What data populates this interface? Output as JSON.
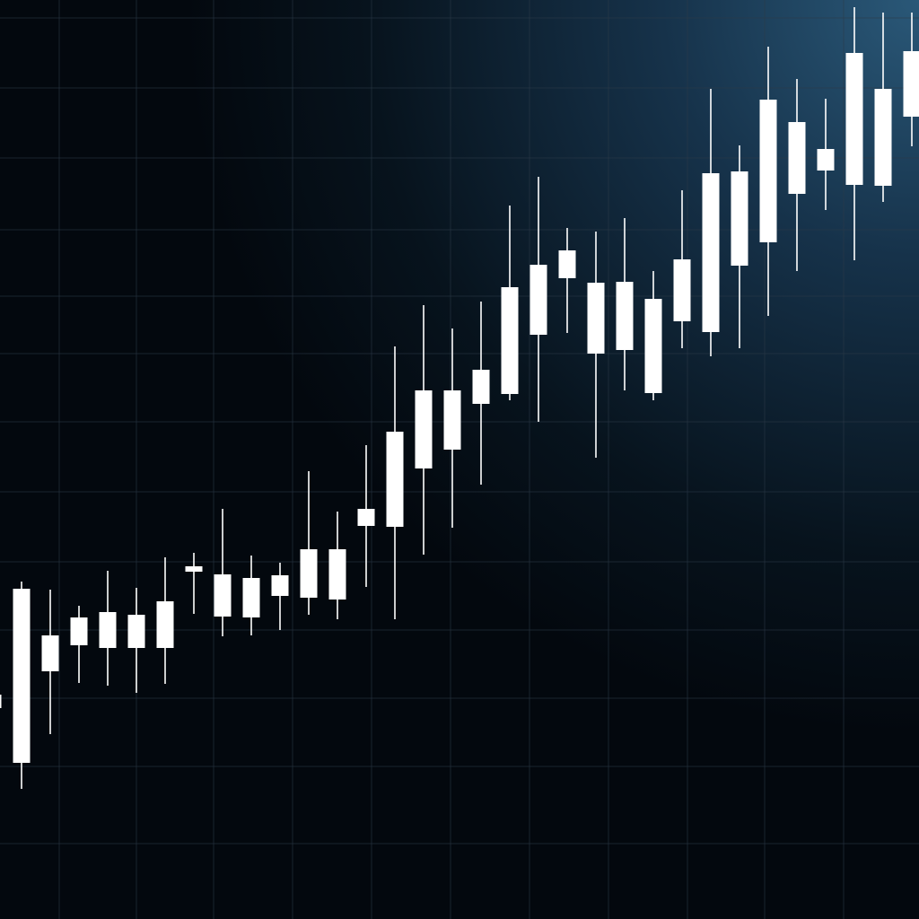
{
  "chart_data": {
    "type": "candlestick",
    "title": "",
    "xlabel": "",
    "ylabel": "",
    "grid": true,
    "legend": "none",
    "ylim": [
      0,
      1024
    ],
    "colors": {
      "background_dark": "#03080e",
      "background_glow": "#2a5878",
      "grid": "#2c3a48",
      "candle": "#ffffff"
    },
    "candles": [
      {
        "open": 235,
        "close": 250,
        "high": 260,
        "low": 226
      },
      {
        "open": 174,
        "close": 368,
        "high": 376,
        "low": 145
      },
      {
        "open": 276,
        "close": 316,
        "high": 367,
        "low": 206
      },
      {
        "open": 305,
        "close": 336,
        "high": 349,
        "low": 263
      },
      {
        "open": 302,
        "close": 342,
        "high": 388,
        "low": 260
      },
      {
        "open": 302,
        "close": 339,
        "high": 369,
        "low": 252
      },
      {
        "open": 302,
        "close": 354,
        "high": 403,
        "low": 262
      },
      {
        "open": 387,
        "close": 393,
        "high": 408,
        "low": 340
      },
      {
        "open": 337,
        "close": 384,
        "high": 457,
        "low": 315
      },
      {
        "open": 336,
        "close": 380,
        "high": 405,
        "low": 316
      },
      {
        "open": 360,
        "close": 383,
        "high": 397,
        "low": 322
      },
      {
        "open": 358,
        "close": 412,
        "high": 499,
        "low": 339
      },
      {
        "open": 356,
        "close": 412,
        "high": 454,
        "low": 334
      },
      {
        "open": 438,
        "close": 457,
        "high": 528,
        "low": 370
      },
      {
        "open": 437,
        "close": 543,
        "high": 638,
        "low": 334
      },
      {
        "open": 502,
        "close": 589,
        "high": 684,
        "low": 406
      },
      {
        "open": 523,
        "close": 589,
        "high": 658,
        "low": 436
      },
      {
        "open": 574,
        "close": 612,
        "high": 688,
        "low": 484
      },
      {
        "open": 585,
        "close": 704,
        "high": 795,
        "low": 578
      },
      {
        "open": 651,
        "close": 729,
        "high": 827,
        "low": 554
      },
      {
        "open": 714,
        "close": 745,
        "high": 770,
        "low": 653
      },
      {
        "open": 630,
        "close": 709,
        "high": 766,
        "low": 514
      },
      {
        "open": 634,
        "close": 710,
        "high": 781,
        "low": 589
      },
      {
        "open": 586,
        "close": 691,
        "high": 722,
        "low": 578
      },
      {
        "open": 666,
        "close": 735,
        "high": 812,
        "low": 636
      },
      {
        "open": 654,
        "close": 831,
        "high": 925,
        "low": 627
      },
      {
        "open": 728,
        "close": 833,
        "high": 862,
        "low": 636
      },
      {
        "open": 754,
        "close": 913,
        "high": 972,
        "low": 672
      },
      {
        "open": 808,
        "close": 888,
        "high": 936,
        "low": 722
      },
      {
        "open": 834,
        "close": 858,
        "high": 914,
        "low": 790
      },
      {
        "open": 818,
        "close": 965,
        "high": 1016,
        "low": 734
      },
      {
        "open": 817,
        "close": 925,
        "high": 1010,
        "low": 799
      },
      {
        "open": 894,
        "close": 967,
        "high": 1010,
        "low": 861
      },
      {
        "open": 882,
        "close": 992,
        "high": 1024,
        "low": 846
      }
    ]
  }
}
